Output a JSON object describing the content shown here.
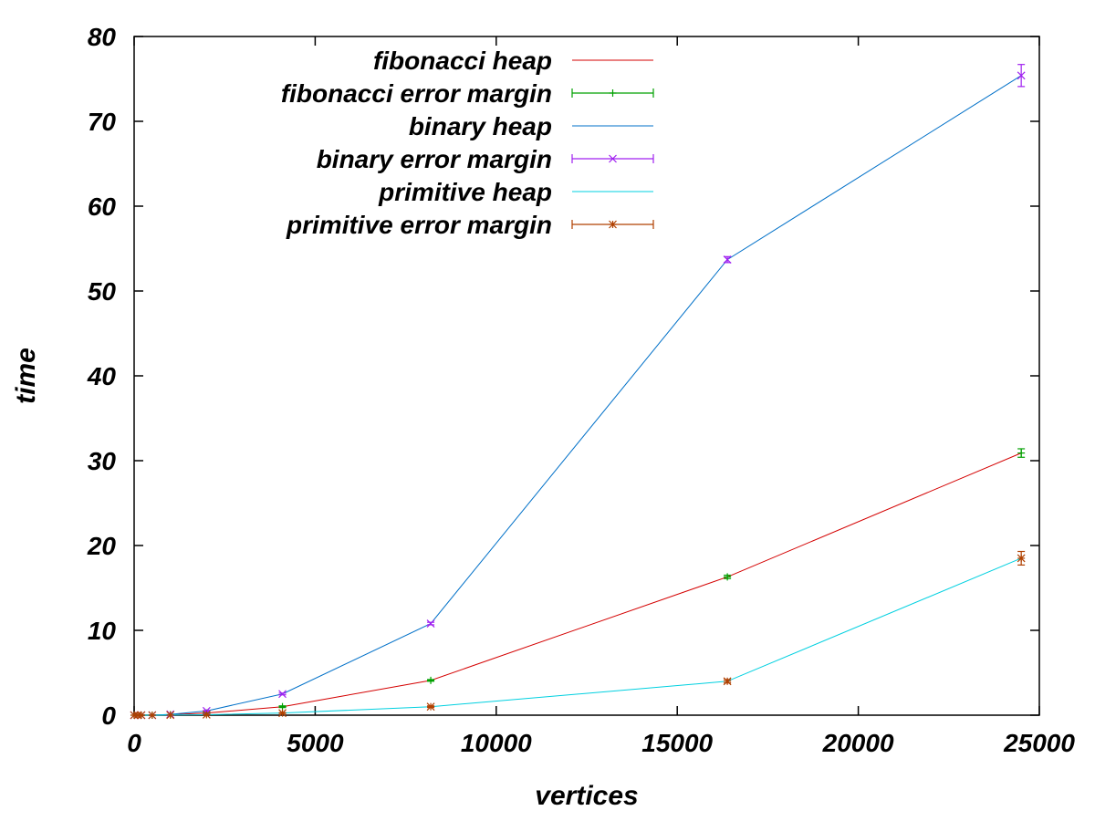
{
  "chart_data": {
    "type": "line",
    "xlabel": "vertices",
    "ylabel": "time",
    "xlim": [
      0,
      25000
    ],
    "ylim": [
      0,
      80
    ],
    "xticks": [
      "0",
      "5000",
      "10000",
      "15000",
      "20000",
      "25000"
    ],
    "yticks": [
      "0",
      "10",
      "20",
      "30",
      "40",
      "50",
      "60",
      "70",
      "80"
    ],
    "grid": false,
    "legend_position": "top-left",
    "series": [
      {
        "name": "fibonacci heap",
        "kind": "line",
        "color": "#d40000",
        "x": [
          0,
          100,
          200,
          500,
          1000,
          2000,
          4096,
          8192,
          16384,
          24500
        ],
        "y": [
          0.0,
          0.0,
          0.0,
          0.0,
          0.05,
          0.25,
          1.0,
          4.1,
          16.3,
          30.9
        ]
      },
      {
        "name": "fibonacci error margin",
        "kind": "errorbar",
        "marker": "plus",
        "color": "#00a000",
        "x": [
          0,
          100,
          200,
          500,
          1000,
          2000,
          4096,
          8192,
          16384,
          24500
        ],
        "y": [
          0.0,
          0.0,
          0.0,
          0.0,
          0.05,
          0.25,
          1.0,
          4.1,
          16.3,
          30.9
        ],
        "err": [
          0,
          0,
          0,
          0,
          0,
          0.05,
          0.1,
          0.1,
          0.2,
          0.5
        ]
      },
      {
        "name": "binary heap",
        "kind": "line",
        "color": "#0070c8",
        "x": [
          0,
          100,
          200,
          500,
          1000,
          2000,
          4096,
          8192,
          16384,
          24500
        ],
        "y": [
          0.0,
          0.0,
          0.0,
          0.0,
          0.1,
          0.5,
          2.5,
          10.8,
          53.7,
          75.4
        ]
      },
      {
        "name": "binary error margin",
        "kind": "errorbar",
        "marker": "cross",
        "color": "#a020f0",
        "x": [
          0,
          100,
          200,
          500,
          1000,
          2000,
          4096,
          8192,
          16384,
          24500
        ],
        "y": [
          0.0,
          0.0,
          0.0,
          0.0,
          0.1,
          0.5,
          2.5,
          10.8,
          53.7,
          75.4
        ],
        "err": [
          0,
          0,
          0,
          0,
          0,
          0.05,
          0.1,
          0.15,
          0.35,
          1.3
        ]
      },
      {
        "name": "primitive heap",
        "kind": "line",
        "color": "#00d0e0",
        "x": [
          0,
          100,
          200,
          500,
          1000,
          2000,
          4096,
          8192,
          16384,
          24500
        ],
        "y": [
          0.0,
          0.0,
          0.0,
          0.0,
          0.02,
          0.06,
          0.25,
          1.0,
          4.0,
          18.5
        ]
      },
      {
        "name": "primitive error margin",
        "kind": "errorbar",
        "marker": "star",
        "color": "#b04000",
        "x": [
          0,
          100,
          200,
          500,
          1000,
          2000,
          4096,
          8192,
          16384,
          24500
        ],
        "y": [
          0.0,
          0.0,
          0.0,
          0.0,
          0.02,
          0.06,
          0.25,
          1.0,
          4.0,
          18.5
        ],
        "err": [
          0,
          0,
          0,
          0,
          0,
          0.02,
          0.05,
          0.1,
          0.2,
          0.8
        ]
      }
    ]
  }
}
